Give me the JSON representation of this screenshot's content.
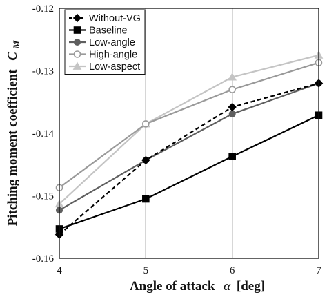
{
  "chart_data": {
    "type": "line",
    "x": [
      4,
      5,
      6,
      7
    ],
    "xlabel_text": "Angle of attack",
    "xlabel_symbol": "α",
    "xlabel_unit": "[deg]",
    "ylabel_text": "Pitching moment coefficient",
    "ylabel_symbol": "C",
    "ylabel_sub": "M",
    "xlim": [
      4,
      7
    ],
    "ylim": [
      -0.16,
      -0.12
    ],
    "xticks": [
      "4",
      "5",
      "6",
      "7"
    ],
    "yticks": [
      "-0.12",
      "-0.13",
      "-0.14",
      "-0.15",
      "-0.16"
    ],
    "grid": "vertical",
    "legend_position": "top-left",
    "series": [
      {
        "name": "Without-VG",
        "values": [
          -0.1562,
          -0.1443,
          -0.1358,
          -0.132
        ],
        "color": "#000000",
        "marker": "diamond",
        "dashed": true
      },
      {
        "name": "Baseline",
        "values": [
          -0.1553,
          -0.1505,
          -0.1437,
          -0.1371
        ],
        "color": "#000000",
        "marker": "square",
        "dashed": false
      },
      {
        "name": "Low-angle",
        "values": [
          -0.1523,
          -0.1443,
          -0.1369,
          -0.132
        ],
        "color": "#5f5f5f",
        "marker": "circle",
        "dashed": false
      },
      {
        "name": "High-angle",
        "values": [
          -0.1487,
          -0.1385,
          -0.133,
          -0.1287
        ],
        "color": "#9a9a9a",
        "marker": "open-circle",
        "dashed": false
      },
      {
        "name": "Low-aspect",
        "values": [
          -0.1513,
          -0.1385,
          -0.131,
          -0.1275
        ],
        "color": "#c4c4c4",
        "marker": "triangle",
        "dashed": false
      }
    ]
  }
}
